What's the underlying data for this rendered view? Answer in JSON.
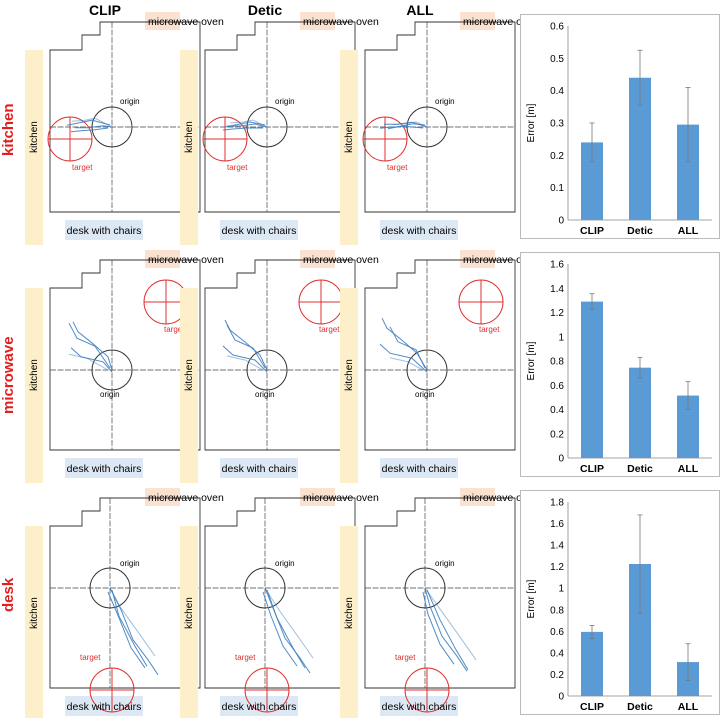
{
  "columns": [
    "CLIP",
    "Detic",
    "ALL"
  ],
  "rows": [
    "kitchen",
    "microwave",
    "desk"
  ],
  "map_labels": {
    "microwave_prefix": "microwa",
    "oven": "ve oven",
    "kitchen": "kitchen",
    "desk": "desk with chairs",
    "origin": "origin",
    "target": "target"
  },
  "colors": {
    "bar": "#5b9bd5",
    "target": "#e03030",
    "origin": "#333333",
    "kitchen_band": "#fdefc9",
    "oven_band": "#fbe1cf",
    "desk_band": "#dde8f5",
    "traj": "#3d7ec0"
  },
  "chart_data": [
    {
      "type": "bar",
      "categories": [
        "CLIP",
        "Detic",
        "ALL"
      ],
      "values": [
        0.24,
        0.44,
        0.295
      ],
      "errors": [
        0.06,
        0.085,
        0.115
      ],
      "ylabel": "Error [m]",
      "ylim": [
        0,
        0.6
      ],
      "yticks": [
        "0",
        "0.1",
        "0.2",
        "0.3",
        "0.4",
        "0.5",
        "0.6"
      ]
    },
    {
      "type": "bar",
      "categories": [
        "CLIP",
        "Detic",
        "ALL"
      ],
      "values": [
        1.29,
        0.745,
        0.515
      ],
      "errors": [
        0.065,
        0.085,
        0.115
      ],
      "ylabel": "Error [m]",
      "ylim": [
        0,
        1.6
      ],
      "yticks": [
        "0",
        "0.2",
        "0.4",
        "0.6",
        "0.8",
        "1",
        "1.2",
        "1.4",
        "1.6"
      ]
    },
    {
      "type": "bar",
      "categories": [
        "CLIP",
        "Detic",
        "ALL"
      ],
      "values": [
        0.595,
        1.225,
        0.315
      ],
      "errors": [
        0.06,
        0.455,
        0.17
      ],
      "ylabel": "Error [m]",
      "ylim": [
        0,
        1.8
      ],
      "yticks": [
        "0",
        "0.2",
        "0.4",
        "0.6",
        "0.8",
        "1",
        "1.2",
        "1.4",
        "1.6",
        "1.8"
      ]
    }
  ]
}
